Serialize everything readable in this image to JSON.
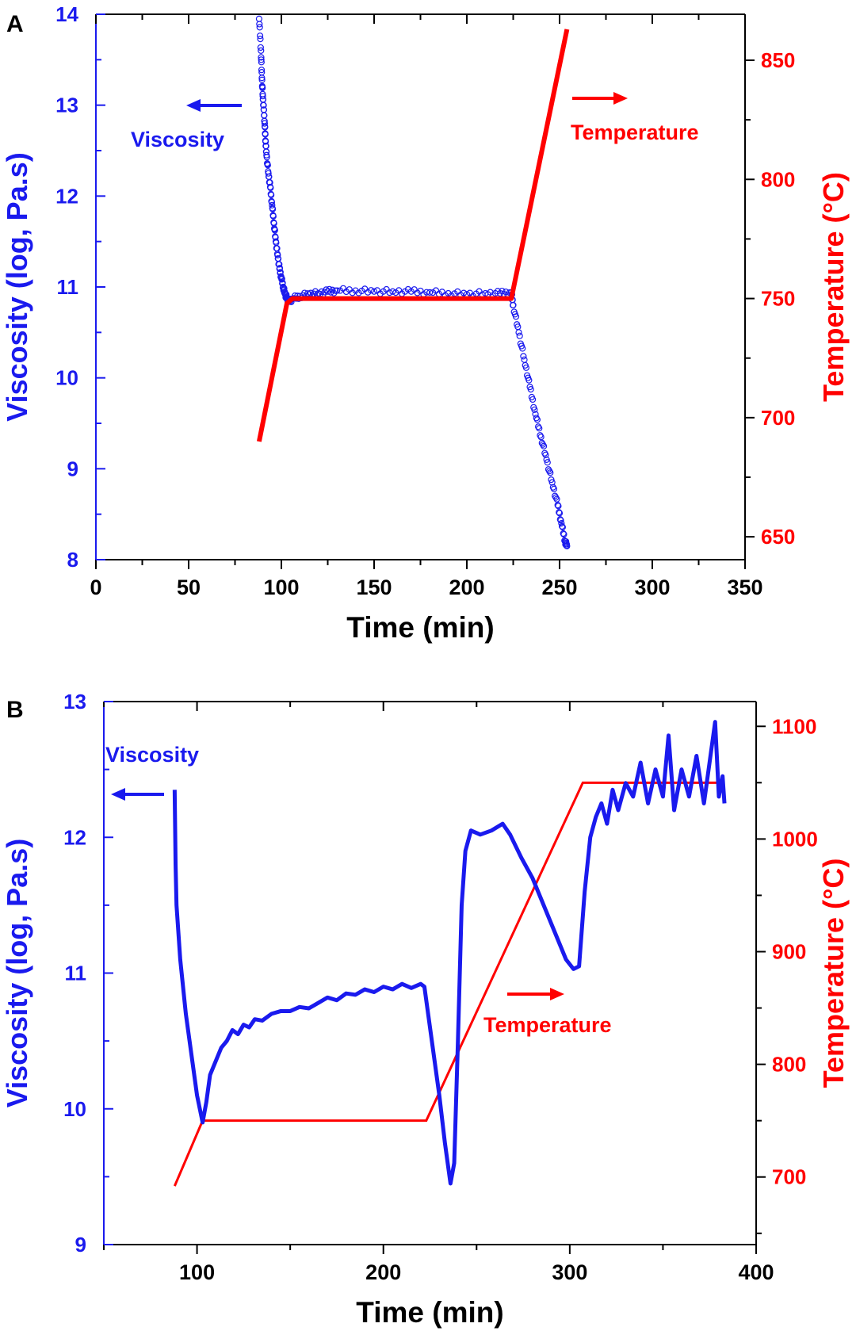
{
  "colors": {
    "viscosity": "#1a1aee",
    "temperature": "#ff0000",
    "axis": "#000000"
  },
  "chart_data": [
    {
      "panel_label": "A",
      "type": "scatter",
      "xlabel": "Time (min)",
      "ylabel": "Viscosity (log, Pa.s)",
      "y2label": "Temperature (°C)",
      "xlim": [
        0,
        350
      ],
      "ylim": [
        8,
        14
      ],
      "y2lim": [
        640.4,
        869.3
      ],
      "xticks": [
        "0",
        "50",
        "100",
        "150",
        "200",
        "250",
        "300",
        "350"
      ],
      "yticks": [
        "8",
        "9",
        "10",
        "11",
        "12",
        "13",
        "14"
      ],
      "y2ticks": [
        "650",
        "700",
        "750",
        "800",
        "850"
      ],
      "annotations": {
        "viscosity": "Viscosity",
        "temperature": "Temperature"
      },
      "series": [
        {
          "name": "Viscosity",
          "axis": "left",
          "marker": "open-circle",
          "points": [
            [
              88,
              13.95
            ],
            [
              89,
              13.6
            ],
            [
              89.5,
              13.3
            ],
            [
              90,
              13.1
            ],
            [
              90.5,
              12.95
            ],
            [
              91,
              12.8
            ],
            [
              91.5,
              12.6
            ],
            [
              92,
              12.45
            ],
            [
              93,
              12.25
            ],
            [
              94,
              12.1
            ],
            [
              95,
              11.9
            ],
            [
              96,
              11.7
            ],
            [
              97,
              11.5
            ],
            [
              98,
              11.35
            ],
            [
              99,
              11.2
            ],
            [
              100,
              11.1
            ],
            [
              101,
              11.0
            ],
            [
              102,
              10.92
            ],
            [
              103,
              10.88
            ],
            [
              104,
              10.84
            ],
            [
              106,
              10.87
            ],
            [
              110,
              10.9
            ],
            [
              115,
              10.92
            ],
            [
              120,
              10.93
            ],
            [
              125,
              10.95
            ],
            [
              130,
              10.96
            ],
            [
              140,
              10.96
            ],
            [
              150,
              10.95
            ],
            [
              160,
              10.95
            ],
            [
              170,
              10.95
            ],
            [
              180,
              10.94
            ],
            [
              190,
              10.93
            ],
            [
              200,
              10.92
            ],
            [
              210,
              10.93
            ],
            [
              218,
              10.93
            ],
            [
              224,
              10.94
            ],
            [
              225,
              10.8
            ],
            [
              228,
              10.5
            ],
            [
              231,
              10.2
            ],
            [
              234,
              9.9
            ],
            [
              237,
              9.6
            ],
            [
              240,
              9.35
            ],
            [
              243,
              9.1
            ],
            [
              246,
              8.85
            ],
            [
              249,
              8.6
            ],
            [
              251,
              8.4
            ],
            [
              253,
              8.2
            ],
            [
              254,
              8.15
            ]
          ]
        },
        {
          "name": "Temperature",
          "axis": "right",
          "type": "line",
          "points": [
            [
              88,
              690
            ],
            [
              103,
              748
            ],
            [
              106,
              750
            ],
            [
              224,
              750
            ],
            [
              254,
              863
            ]
          ]
        }
      ]
    },
    {
      "panel_label": "B",
      "type": "line",
      "xlabel": "Time (min)",
      "ylabel": "Viscosity (log, Pa.s)",
      "y2label": "Temperature (°C)",
      "xlim": [
        50,
        400
      ],
      "ylim": [
        9,
        13
      ],
      "y2lim": [
        640,
        1122
      ],
      "xticks": [
        "100",
        "200",
        "300",
        "400"
      ],
      "yticks": [
        "9",
        "10",
        "11",
        "12",
        "13"
      ],
      "y2ticks": [
        "700",
        "800",
        "900",
        "1000",
        "1100"
      ],
      "annotations": {
        "viscosity": "Viscosity",
        "temperature": "Temperature"
      },
      "series": [
        {
          "name": "Viscosity",
          "axis": "left",
          "points": [
            [
              88,
              12.35
            ],
            [
              88.5,
              11.8
            ],
            [
              89,
              11.5
            ],
            [
              91,
              11.1
            ],
            [
              94,
              10.7
            ],
            [
              97,
              10.4
            ],
            [
              100,
              10.1
            ],
            [
              103,
              9.9
            ],
            [
              105,
              10.05
            ],
            [
              107,
              10.25
            ],
            [
              110,
              10.35
            ],
            [
              113,
              10.45
            ],
            [
              116,
              10.5
            ],
            [
              119,
              10.58
            ],
            [
              122,
              10.55
            ],
            [
              125,
              10.62
            ],
            [
              128,
              10.6
            ],
            [
              131,
              10.66
            ],
            [
              135,
              10.65
            ],
            [
              140,
              10.7
            ],
            [
              145,
              10.72
            ],
            [
              150,
              10.72
            ],
            [
              155,
              10.75
            ],
            [
              160,
              10.74
            ],
            [
              165,
              10.78
            ],
            [
              170,
              10.82
            ],
            [
              175,
              10.8
            ],
            [
              180,
              10.85
            ],
            [
              185,
              10.84
            ],
            [
              190,
              10.88
            ],
            [
              195,
              10.86
            ],
            [
              200,
              10.9
            ],
            [
              205,
              10.88
            ],
            [
              210,
              10.92
            ],
            [
              215,
              10.89
            ],
            [
              220,
              10.92
            ],
            [
              222,
              10.9
            ],
            [
              226,
              10.5
            ],
            [
              230,
              10.1
            ],
            [
              233,
              9.75
            ],
            [
              236,
              9.45
            ],
            [
              238,
              9.6
            ],
            [
              240,
              10.5
            ],
            [
              242,
              11.5
            ],
            [
              244,
              11.9
            ],
            [
              247,
              12.05
            ],
            [
              252,
              12.02
            ],
            [
              258,
              12.05
            ],
            [
              264,
              12.1
            ],
            [
              268,
              12.02
            ],
            [
              274,
              11.85
            ],
            [
              280,
              11.7
            ],
            [
              286,
              11.5
            ],
            [
              292,
              11.3
            ],
            [
              298,
              11.1
            ],
            [
              302,
              11.03
            ],
            [
              305,
              11.05
            ],
            [
              308,
              11.6
            ],
            [
              311,
              12.0
            ],
            [
              314,
              12.15
            ],
            [
              317,
              12.25
            ],
            [
              320,
              12.1
            ],
            [
              323,
              12.35
            ],
            [
              326,
              12.2
            ],
            [
              330,
              12.4
            ],
            [
              334,
              12.3
            ],
            [
              338,
              12.55
            ],
            [
              342,
              12.25
            ],
            [
              346,
              12.5
            ],
            [
              350,
              12.3
            ],
            [
              353,
              12.75
            ],
            [
              356,
              12.2
            ],
            [
              360,
              12.5
            ],
            [
              364,
              12.3
            ],
            [
              368,
              12.6
            ],
            [
              372,
              12.25
            ],
            [
              376,
              12.65
            ],
            [
              378,
              12.85
            ],
            [
              380,
              12.3
            ],
            [
              382,
              12.45
            ],
            [
              383,
              12.25
            ]
          ]
        },
        {
          "name": "Temperature",
          "axis": "right",
          "points": [
            [
              88,
              692
            ],
            [
              103,
              750
            ],
            [
              223,
              750
            ],
            [
              307,
              1050
            ],
            [
              383,
              1050
            ]
          ]
        }
      ]
    }
  ]
}
